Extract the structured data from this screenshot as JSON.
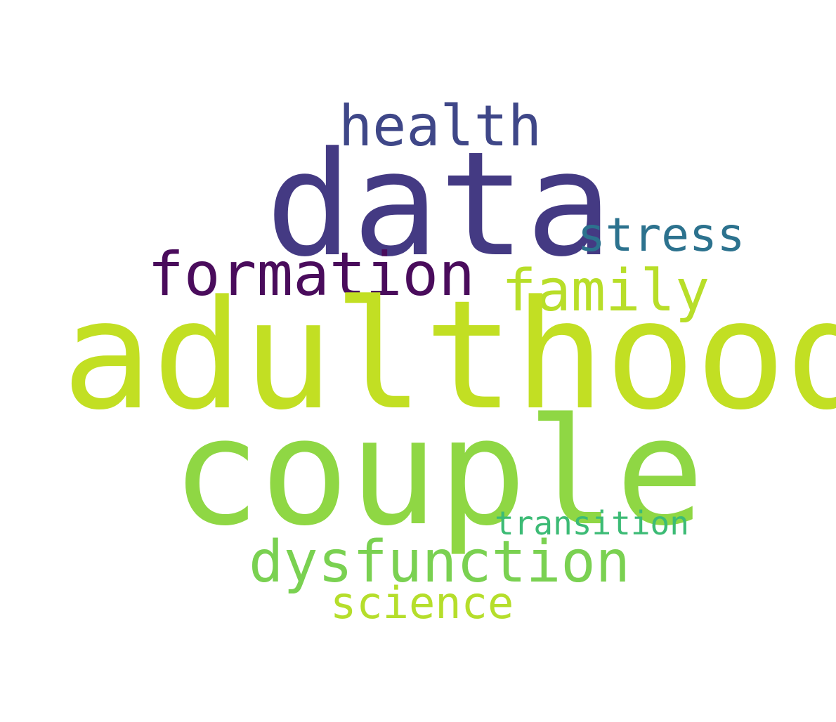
{
  "words": [
    {
      "id": "data",
      "text": "data",
      "color": "#443a83"
    },
    {
      "id": "health",
      "text": "health",
      "color": "#3f4788"
    },
    {
      "id": "stress",
      "text": "stress",
      "color": "#2c728e"
    },
    {
      "id": "formation",
      "text": "formation",
      "color": "#4a0c5c"
    },
    {
      "id": "family",
      "text": "family",
      "color": "#b8de29"
    },
    {
      "id": "adulthood",
      "text": "adulthood",
      "color": "#c2df23"
    },
    {
      "id": "couple",
      "text": "couple",
      "color": "#8fd744"
    },
    {
      "id": "transition",
      "text": "transition",
      "color": "#3cbb75"
    },
    {
      "id": "dysfunction",
      "text": "dysfunction",
      "color": "#7ad151"
    },
    {
      "id": "science",
      "text": "science",
      "color": "#b5de2b"
    }
  ]
}
